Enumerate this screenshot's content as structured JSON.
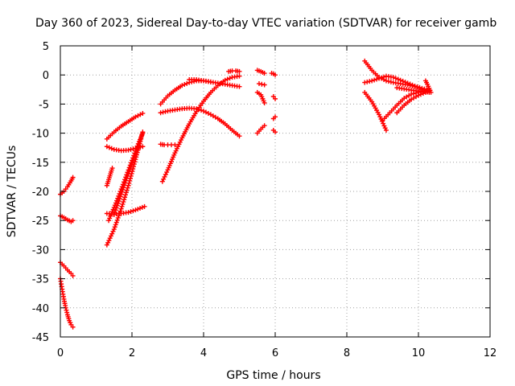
{
  "chart_data": {
    "type": "scatter",
    "title": "Day 360 of 2023, Sidereal Day-to-day VTEC variation (SDTVAR) for receiver gamb",
    "xlabel": "GPS time / hours",
    "ylabel": "SDTVAR / TECUs",
    "xlim": [
      0,
      12
    ],
    "ylim": [
      -45,
      5
    ],
    "xticks": [
      0,
      2,
      4,
      6,
      8,
      10,
      12
    ],
    "yticks": [
      5,
      0,
      -5,
      -10,
      -15,
      -20,
      -25,
      -30,
      -35,
      -40,
      -45
    ],
    "grid": true,
    "legend": "none",
    "marker": "+",
    "color": "#ff0000",
    "series": [
      {
        "x": [
          0.0,
          0.1,
          0.2,
          0.3,
          0.35
        ],
        "y": [
          -20.5,
          -20.0,
          -19.2,
          -18.2,
          -17.6
        ]
      },
      {
        "x": [
          0.0,
          0.1,
          0.2,
          0.3,
          0.35
        ],
        "y": [
          -24.2,
          -24.5,
          -24.9,
          -25.2,
          -25.0
        ]
      },
      {
        "x": [
          0.0,
          0.1,
          0.2,
          0.3,
          0.35
        ],
        "y": [
          -32.2,
          -32.8,
          -33.5,
          -34.1,
          -34.5
        ]
      },
      {
        "x": [
          0.0,
          0.05,
          0.1,
          0.15,
          0.2,
          0.25,
          0.3,
          0.35
        ],
        "y": [
          -35.0,
          -36.8,
          -38.5,
          -40.0,
          -41.2,
          -42.2,
          -42.9,
          -43.3
        ]
      },
      {
        "x": [
          1.3,
          1.5,
          1.7,
          1.9,
          2.1,
          2.3
        ],
        "y": [
          -11.0,
          -9.8,
          -8.8,
          -8.0,
          -7.2,
          -6.6
        ]
      },
      {
        "x": [
          1.3,
          1.5,
          1.7,
          1.9,
          2.1,
          2.3
        ],
        "y": [
          -12.3,
          -12.8,
          -13.0,
          -12.9,
          -12.6,
          -12.3
        ]
      },
      {
        "x": [
          1.3,
          1.35,
          1.4,
          1.45
        ],
        "y": [
          -19.0,
          -18.0,
          -17.0,
          -16.0
        ]
      },
      {
        "x": [
          1.3,
          1.5,
          1.7,
          1.9,
          2.1,
          2.35
        ],
        "y": [
          -23.8,
          -23.9,
          -23.8,
          -23.6,
          -23.2,
          -22.6
        ]
      },
      {
        "x": [
          1.3,
          1.5,
          1.7,
          1.9,
          2.1,
          2.3
        ],
        "y": [
          -29.2,
          -26.5,
          -23.0,
          -19.0,
          -14.5,
          -9.8
        ]
      },
      {
        "x": [
          1.35,
          1.55,
          1.75,
          1.95,
          2.15,
          2.3
        ],
        "y": [
          -25.0,
          -22.0,
          -18.8,
          -15.5,
          -12.2,
          -10.0
        ]
      },
      {
        "x": [
          1.5,
          1.7,
          1.9,
          2.1,
          2.25
        ],
        "y": [
          -24.0,
          -20.5,
          -17.0,
          -13.5,
          -11.0
        ]
      },
      {
        "x": [
          2.8,
          2.9,
          3.0,
          3.1,
          3.2
        ],
        "y": [
          -11.9,
          -12.0,
          -12.0,
          -12.0,
          -12.0
        ]
      },
      {
        "x": [
          2.8,
          3.0,
          3.2,
          3.4,
          3.6,
          3.8,
          4.0,
          4.2
        ],
        "y": [
          -5.0,
          -3.6,
          -2.6,
          -1.8,
          -1.3,
          -1.0,
          -1.0,
          -1.2
        ]
      },
      {
        "x": [
          2.8,
          3.0,
          3.2,
          3.4,
          3.6,
          3.8,
          4.0,
          4.2,
          4.4,
          4.6,
          4.8,
          5.0
        ],
        "y": [
          -6.5,
          -6.2,
          -6.0,
          -5.8,
          -5.7,
          -5.8,
          -6.2,
          -6.8,
          -7.5,
          -8.4,
          -9.5,
          -10.5
        ]
      },
      {
        "x": [
          2.85,
          3.0,
          3.2,
          3.4,
          3.6,
          3.8,
          4.0,
          4.2,
          4.4,
          4.6,
          4.8,
          5.0
        ],
        "y": [
          -18.3,
          -16.3,
          -13.4,
          -10.8,
          -8.4,
          -6.3,
          -4.5,
          -3.0,
          -1.8,
          -0.9,
          -0.4,
          -0.2
        ]
      },
      {
        "x": [
          3.6,
          3.8,
          4.0,
          4.2,
          4.4,
          4.6,
          4.8,
          5.0
        ],
        "y": [
          -0.8,
          -0.8,
          -1.0,
          -1.2,
          -1.4,
          -1.6,
          -1.8,
          -2.0
        ]
      },
      {
        "x": [
          4.7,
          4.8,
          4.9,
          5.0
        ],
        "y": [
          0.6,
          0.7,
          0.7,
          0.6
        ]
      },
      {
        "x": [
          5.5,
          5.6,
          5.7
        ],
        "y": [
          0.8,
          0.6,
          0.3
        ]
      },
      {
        "x": [
          5.55,
          5.7
        ],
        "y": [
          -1.5,
          -1.7
        ]
      },
      {
        "x": [
          5.5,
          5.6,
          5.7
        ],
        "y": [
          -3.0,
          -3.4,
          -4.8
        ]
      },
      {
        "x": [
          5.5,
          5.6,
          5.7
        ],
        "y": [
          -10.0,
          -9.3,
          -8.7
        ]
      },
      {
        "x": [
          5.9,
          5.95,
          6.0
        ],
        "y": [
          0.3,
          0.2,
          0.0
        ]
      },
      {
        "x": [
          5.95,
          6.0
        ],
        "y": [
          -3.7,
          -4.1
        ]
      },
      {
        "x": [
          5.95,
          6.0
        ],
        "y": [
          -7.5,
          -7.2
        ]
      },
      {
        "x": [
          5.95,
          6.0
        ],
        "y": [
          -9.5,
          -9.8
        ]
      },
      {
        "x": [
          8.5,
          8.7,
          8.9,
          9.1,
          9.3,
          9.5,
          9.7,
          9.9,
          10.1,
          10.3
        ],
        "y": [
          2.4,
          0.8,
          -0.4,
          -1.0,
          -1.3,
          -1.5,
          -1.7,
          -2.0,
          -2.4,
          -2.8
        ]
      },
      {
        "x": [
          8.5,
          8.7,
          8.9,
          9.1,
          9.3,
          9.5,
          9.7,
          9.9,
          10.1,
          10.3
        ],
        "y": [
          -1.3,
          -1.0,
          -0.6,
          -0.2,
          -0.4,
          -0.9,
          -1.4,
          -1.9,
          -2.3,
          -2.6
        ]
      },
      {
        "x": [
          8.5,
          8.7,
          8.9,
          9.1
        ],
        "y": [
          -3.0,
          -4.6,
          -6.8,
          -9.5
        ]
      },
      {
        "x": [
          9.0,
          9.2,
          9.4,
          9.6,
          9.8,
          10.0,
          10.2,
          10.3
        ],
        "y": [
          -7.8,
          -6.5,
          -5.2,
          -4.0,
          -3.3,
          -3.0,
          -2.8,
          -2.6
        ]
      },
      {
        "x": [
          9.4,
          9.6,
          9.8,
          10.0,
          10.2,
          10.3
        ],
        "y": [
          -6.5,
          -5.2,
          -4.2,
          -3.5,
          -3.0,
          -2.7
        ]
      },
      {
        "x": [
          9.4,
          9.6,
          9.8,
          10.0,
          10.2,
          10.3
        ],
        "y": [
          -2.2,
          -2.4,
          -2.6,
          -2.8,
          -2.9,
          -3.0
        ]
      },
      {
        "x": [
          10.2,
          10.25,
          10.3,
          10.35
        ],
        "y": [
          -1.0,
          -1.6,
          -2.3,
          -3.0
        ]
      }
    ]
  }
}
